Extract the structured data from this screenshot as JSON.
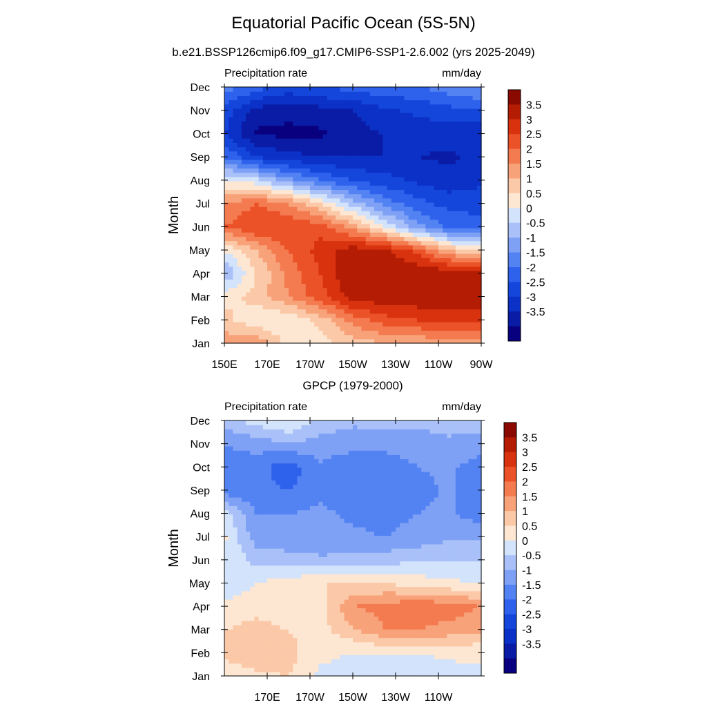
{
  "header": {
    "title": "Equatorial Pacific Ocean (5S-5N)",
    "subtitle": "b.e21.BSSP126cmip6.f09_g17.CMIP6-SSP1-2.6.002 (yrs 2025-2049)"
  },
  "colors": {
    "levels_palette": [
      "#08007f",
      "#0a1ca6",
      "#0b31c7",
      "#1446dc",
      "#2f62ec",
      "#5383f2",
      "#7ea1f6",
      "#a9c1f8",
      "#d2e3fb",
      "#fde7d2",
      "#fbc9a8",
      "#f8a27a",
      "#f47b50",
      "#ec5228",
      "#d8320e",
      "#b41c04",
      "#8a0a02"
    ]
  },
  "colorbar": {
    "labels": [
      "3.5",
      "3",
      "2.5",
      "2",
      "1.5",
      "1",
      "0.5",
      "0",
      "-0.5",
      "-1",
      "-1.5",
      "-2",
      "-2.5",
      "-3",
      "-3.5"
    ]
  },
  "chart_data": [
    {
      "type": "heatmap",
      "title": "",
      "left_label": "Precipitation rate",
      "right_label": "mm/day",
      "ylabel": "Month",
      "xlabel": "",
      "y_ticks": [
        "Jan",
        "Feb",
        "Mar",
        "Apr",
        "May",
        "Jun",
        "Jul",
        "Aug",
        "Sep",
        "Oct",
        "Nov",
        "Dec"
      ],
      "x_ticks": [
        "150E",
        "170E",
        "170W",
        "150W",
        "130W",
        "110W",
        "90W"
      ],
      "x_range_deg_east": [
        150,
        270
      ],
      "levels": [
        -3.5,
        -3,
        -2.5,
        -2,
        -1.5,
        -1,
        -0.5,
        0,
        0.5,
        1,
        1.5,
        2,
        2.5,
        3,
        3.5
      ],
      "grid_lon": [
        150,
        165,
        180,
        195,
        210,
        225,
        240,
        255,
        270
      ],
      "grid_month": [
        "Jan",
        "Feb",
        "Mar",
        "Apr",
        "May",
        "Jun",
        "Jul",
        "Aug",
        "Sep",
        "Oct",
        "Nov",
        "Dec"
      ],
      "values": [
        [
          1.8,
          2.0,
          0.8,
          0.8,
          1.2,
          1.5,
          1.5,
          1.8,
          1.8
        ],
        [
          1.2,
          0.6,
          0.5,
          1.2,
          2.2,
          2.8,
          3.0,
          3.2,
          3.2
        ],
        [
          0.8,
          1.2,
          2.0,
          2.8,
          3.8,
          3.8,
          3.9,
          3.9,
          3.9
        ],
        [
          -0.5,
          1.0,
          2.2,
          3.0,
          4.0,
          4.0,
          4.0,
          3.9,
          3.9
        ],
        [
          0.5,
          1.5,
          2.5,
          3.2,
          3.8,
          3.6,
          2.8,
          1.5,
          0.8
        ],
        [
          2.5,
          3.0,
          3.0,
          2.8,
          1.8,
          0.5,
          -0.8,
          -1.6,
          -1.8
        ],
        [
          2.0,
          2.5,
          2.0,
          1.0,
          -0.2,
          -1.2,
          -1.8,
          -2.2,
          -2.2
        ],
        [
          0.5,
          0.2,
          -0.8,
          -1.5,
          -2.0,
          -2.3,
          -2.6,
          -2.8,
          -2.6
        ],
        [
          -1.5,
          -2.5,
          -2.8,
          -3.0,
          -3.0,
          -3.0,
          -3.0,
          -3.1,
          -2.8
        ],
        [
          -2.5,
          -3.6,
          -3.6,
          -3.6,
          -3.2,
          -3.0,
          -2.8,
          -2.8,
          -3.0
        ],
        [
          -2.2,
          -3.2,
          -3.4,
          -3.2,
          -3.0,
          -2.6,
          -2.4,
          -2.2,
          -2.0
        ],
        [
          -1.2,
          -1.8,
          -2.2,
          -2.0,
          -1.8,
          -1.6,
          -1.6,
          -1.2,
          -1.0
        ]
      ]
    },
    {
      "type": "heatmap",
      "title": "GPCP (1979-2000)",
      "left_label": "Precipitation rate",
      "right_label": "mm/day",
      "ylabel": "Month",
      "xlabel": "",
      "y_ticks": [
        "Jan",
        "Feb",
        "Mar",
        "Apr",
        "May",
        "Jun",
        "Jul",
        "Aug",
        "Sep",
        "Oct",
        "Nov",
        "Dec"
      ],
      "x_ticks": [
        "170E",
        "170W",
        "150W",
        "130W",
        "110W"
      ],
      "x_range_deg_east": [
        150,
        270
      ],
      "levels": [
        -3.5,
        -3,
        -2.5,
        -2,
        -1.5,
        -1,
        -0.5,
        0,
        0.5,
        1,
        1.5,
        2,
        2.5,
        3,
        3.5
      ],
      "grid_lon": [
        150,
        165,
        180,
        195,
        210,
        225,
        240,
        255,
        270
      ],
      "grid_month": [
        "Jan",
        "Feb",
        "Mar",
        "Apr",
        "May",
        "Jun",
        "Jul",
        "Aug",
        "Sep",
        "Oct",
        "Nov",
        "Dec"
      ],
      "values": [
        [
          0.6,
          0.9,
          1.0,
          0.4,
          0.3,
          0.3,
          0.2,
          0.3,
          0.4
        ],
        [
          1.2,
          1.3,
          1.2,
          0.6,
          0.5,
          0.5,
          0.5,
          0.6,
          0.6
        ],
        [
          1.0,
          1.2,
          1.0,
          0.8,
          1.4,
          2.0,
          2.0,
          1.8,
          1.6
        ],
        [
          0.6,
          0.8,
          0.6,
          0.8,
          2.0,
          2.2,
          2.4,
          2.3,
          2.0
        ],
        [
          0.2,
          0.5,
          0.8,
          1.0,
          1.0,
          1.0,
          0.8,
          0.6,
          0.5
        ],
        [
          0.5,
          -0.2,
          -0.3,
          -0.4,
          -0.3,
          -0.2,
          -0.1,
          0.0,
          0.0
        ],
        [
          0.6,
          -0.8,
          -0.8,
          -0.9,
          -0.9,
          -1.0,
          -0.8,
          -0.6,
          -0.6
        ],
        [
          0.3,
          -1.0,
          -1.0,
          -0.9,
          -1.1,
          -1.2,
          -1.0,
          -0.9,
          -1.3
        ],
        [
          -1.3,
          -1.4,
          -1.5,
          -1.1,
          -1.3,
          -1.4,
          -1.2,
          -0.9,
          -1.4
        ],
        [
          -1.2,
          -1.3,
          -1.8,
          -1.1,
          -1.4,
          -1.4,
          -1.0,
          -0.9,
          -1.3
        ],
        [
          -1.0,
          -0.8,
          -0.6,
          -0.7,
          -0.8,
          -0.8,
          -0.7,
          -0.6,
          -0.7
        ],
        [
          -0.2,
          0.2,
          0.6,
          -0.2,
          -0.4,
          -0.3,
          -0.4,
          -0.3,
          -0.3
        ]
      ]
    }
  ]
}
